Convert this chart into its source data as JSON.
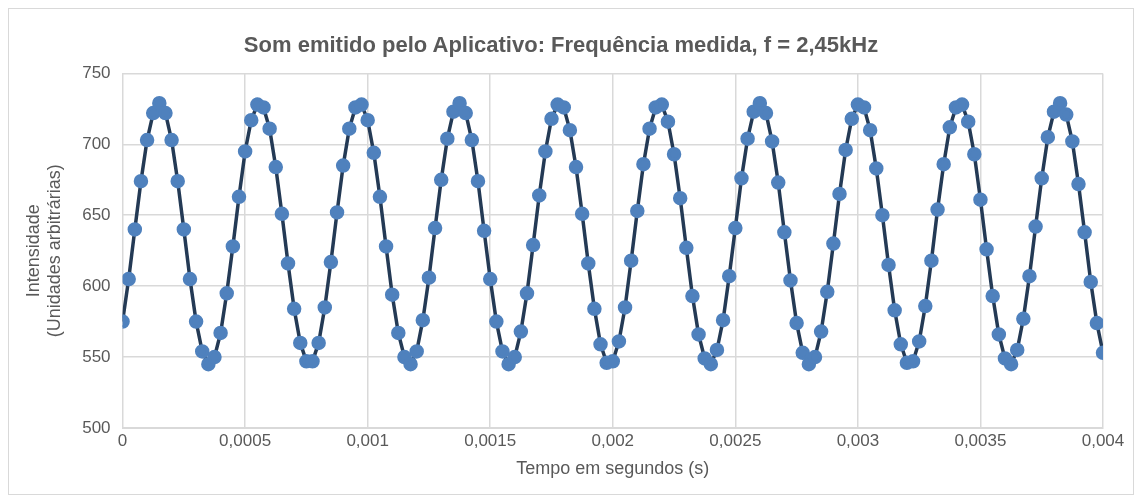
{
  "chart_data": {
    "type": "line",
    "title": "Som emitido pelo Aplicativo: Frequência medida, f = 2,45kHz",
    "xlabel": "Tempo em segundos (s)",
    "ylabel": "Intensidade\n(Unidades arbitrárias)",
    "x": [
      0,
      2.5e-05,
      5e-05,
      7.5e-05,
      0.0001,
      0.000125,
      0.00015,
      0.000175,
      0.0002,
      0.000225,
      0.00025,
      0.000275,
      0.0003,
      0.000325,
      0.00035,
      0.000375,
      0.0004,
      0.000425,
      0.00045,
      0.000475,
      0.0005,
      0.000525,
      0.00055,
      0.000575,
      0.0006,
      0.000625,
      0.00065,
      0.000675,
      0.0007,
      0.000725,
      0.00075,
      0.000775,
      0.0008,
      0.000825,
      0.00085,
      0.000875,
      0.0009,
      0.000925,
      0.00095,
      0.000975,
      0.001,
      0.001025,
      0.00105,
      0.001075,
      0.0011,
      0.001125,
      0.00115,
      0.001175,
      0.0012,
      0.001225,
      0.00125,
      0.001275,
      0.0013,
      0.001325,
      0.00135,
      0.001375,
      0.0014,
      0.001425,
      0.00145,
      0.001475,
      0.0015,
      0.001525,
      0.00155,
      0.001575,
      0.0016,
      0.001625,
      0.00165,
      0.001675,
      0.0017,
      0.001725,
      0.00175,
      0.001775,
      0.0018,
      0.001825,
      0.00185,
      0.001875,
      0.0019,
      0.001925,
      0.00195,
      0.001975,
      0.002,
      0.002025,
      0.00205,
      0.002075,
      0.0021,
      0.002125,
      0.00215,
      0.002175,
      0.0022,
      0.002225,
      0.00225,
      0.002275,
      0.0023,
      0.002325,
      0.00235,
      0.002375,
      0.0024,
      0.002425,
      0.00245,
      0.002475,
      0.0025,
      0.002525,
      0.00255,
      0.002575,
      0.0026,
      0.002625,
      0.00265,
      0.002675,
      0.0027,
      0.002725,
      0.00275,
      0.002775,
      0.0028,
      0.002825,
      0.00285,
      0.002875,
      0.0029,
      0.002925,
      0.00295,
      0.002975,
      0.003,
      0.003025,
      0.00305,
      0.003075,
      0.0031,
      0.003125,
      0.00315,
      0.003175,
      0.0032,
      0.003225,
      0.00325,
      0.003275,
      0.0033,
      0.003325,
      0.00335,
      0.003375,
      0.0034,
      0.003425,
      0.00345,
      0.003475,
      0.0035,
      0.003525,
      0.00355,
      0.003575,
      0.0036,
      0.003625,
      0.00365,
      0.003675,
      0.0037,
      0.003725,
      0.00375,
      0.003775,
      0.0038,
      0.003825,
      0.00385,
      0.003875,
      0.0039,
      0.003925,
      0.00395,
      0.003975,
      0.004
    ],
    "series": [
      {
        "color": "#4f81bd",
        "values": [
          575,
          605,
          640,
          674,
          703,
          722,
          729,
          722,
          703,
          674,
          640,
          605,
          575,
          554,
          545,
          550,
          567,
          595,
          628,
          663,
          695,
          717,
          728,
          726,
          711,
          684,
          651,
          616,
          584,
          560,
          547,
          547,
          560,
          585,
          617,
          652,
          685,
          711,
          726,
          728,
          717,
          694,
          663,
          628,
          594,
          567,
          550,
          545,
          554,
          576,
          606,
          641,
          675,
          704,
          723,
          729,
          722,
          703,
          674,
          639,
          605,
          575,
          554,
          545,
          550,
          568,
          595,
          629,
          664,
          695,
          718,
          728,
          726,
          710,
          684,
          651,
          616,
          584,
          559,
          546,
          547,
          561,
          585,
          618,
          653,
          686,
          711,
          726,
          728,
          716,
          693,
          662,
          627,
          593,
          566,
          549,
          545,
          555,
          576,
          607,
          641,
          676,
          704,
          723,
          729,
          722,
          702,
          673,
          638,
          604,
          574,
          553,
          545,
          550,
          568,
          596,
          630,
          665,
          696,
          718,
          728,
          726,
          710,
          683,
          650,
          615,
          583,
          559,
          546,
          547,
          561,
          586,
          618,
          654,
          686,
          712,
          726,
          728,
          716,
          693,
          661,
          626,
          593,
          566,
          549,
          545,
          555,
          577,
          607,
          642,
          676,
          705,
          723,
          729,
          721,
          702,
          672,
          638,
          603,
          574,
          553
        ]
      }
    ],
    "xlim": [
      0,
      0.004
    ],
    "xticks": [
      0,
      {
        "value": 0.0005,
        "label": "0,0005"
      },
      {
        "value": 0.001,
        "label": "0,001"
      },
      {
        "value": 0.0015,
        "label": "0,0015"
      },
      {
        "value": 0.002,
        "label": "0,002"
      },
      {
        "value": 0.0025,
        "label": "0,0025"
      },
      {
        "value": 0.003,
        "label": "0,003"
      },
      {
        "value": 0.0035,
        "label": "0,0035"
      },
      {
        "value": 0.004,
        "label": "0,004"
      }
    ],
    "ylim": [
      500,
      750
    ],
    "yticks": [
      500,
      550,
      600,
      650,
      700,
      750
    ],
    "grid": true,
    "legend": false,
    "marker": "circle",
    "line_style": "solid"
  }
}
